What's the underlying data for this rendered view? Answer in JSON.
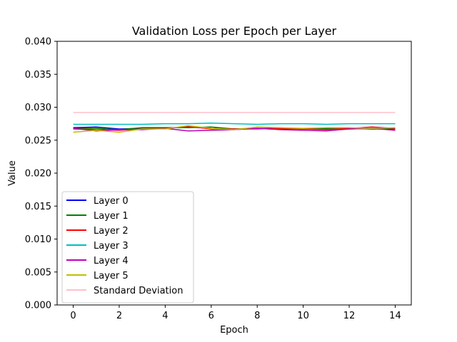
{
  "chart_data": {
    "type": "line",
    "title": "Validation Loss per Epoch per Layer",
    "xlabel": "Epoch",
    "ylabel": "Value",
    "xlim": [
      -0.7,
      14.7
    ],
    "ylim": [
      0.0,
      0.04
    ],
    "xticks": [
      0,
      2,
      4,
      6,
      8,
      10,
      12,
      14
    ],
    "yticks": [
      0.0,
      0.005,
      0.01,
      0.015,
      0.02,
      0.025,
      0.03,
      0.035,
      0.04
    ],
    "ytick_labels": [
      "0.000",
      "0.005",
      "0.010",
      "0.015",
      "0.020",
      "0.025",
      "0.030",
      "0.035",
      "0.040"
    ],
    "grid": false,
    "legend_position": "lower-left",
    "x": [
      0,
      1,
      2,
      3,
      4,
      5,
      6,
      7,
      8,
      9,
      10,
      11,
      12,
      13,
      14
    ],
    "series": [
      {
        "name": "Layer 0",
        "color": "#0000ff",
        "values": [
          0.0269,
          0.027,
          0.0267,
          0.0268,
          0.0268,
          0.027,
          0.0268,
          0.0267,
          0.0268,
          0.0268,
          0.0267,
          0.0267,
          0.0268,
          0.0267,
          0.0267
        ]
      },
      {
        "name": "Layer 1",
        "color": "#008000",
        "values": [
          0.0268,
          0.0268,
          0.0266,
          0.0269,
          0.0269,
          0.0269,
          0.027,
          0.0267,
          0.0268,
          0.0267,
          0.0267,
          0.0268,
          0.0267,
          0.0268,
          0.0268
        ]
      },
      {
        "name": "Layer 2",
        "color": "#ff0000",
        "values": [
          0.0267,
          0.0266,
          0.0265,
          0.0267,
          0.0268,
          0.0271,
          0.0267,
          0.0267,
          0.0267,
          0.0268,
          0.0267,
          0.0266,
          0.0268,
          0.027,
          0.0268
        ]
      },
      {
        "name": "Layer 3",
        "color": "#00bfbf",
        "values": [
          0.0274,
          0.0274,
          0.0274,
          0.0274,
          0.0275,
          0.0275,
          0.0276,
          0.0275,
          0.0274,
          0.0275,
          0.0275,
          0.0274,
          0.0275,
          0.0275,
          0.0275
        ]
      },
      {
        "name": "Layer 4",
        "color": "#bf00bf",
        "values": [
          0.0268,
          0.0264,
          0.0266,
          0.0266,
          0.0268,
          0.0264,
          0.0265,
          0.0266,
          0.0268,
          0.0266,
          0.0265,
          0.0264,
          0.0267,
          0.0268,
          0.0265
        ]
      },
      {
        "name": "Layer 5",
        "color": "#bfbf00",
        "values": [
          0.0262,
          0.0265,
          0.0262,
          0.0267,
          0.0267,
          0.0272,
          0.0268,
          0.0266,
          0.027,
          0.0269,
          0.0268,
          0.0269,
          0.0269,
          0.0268,
          0.0269
        ]
      },
      {
        "name": "Standard Deviation",
        "color": "#ffc0cb",
        "values": [
          0.0292,
          0.0292,
          0.0292,
          0.0292,
          0.0292,
          0.0292,
          0.0292,
          0.0292,
          0.0292,
          0.0292,
          0.0292,
          0.0292,
          0.0292,
          0.0292,
          0.0292
        ]
      }
    ]
  }
}
